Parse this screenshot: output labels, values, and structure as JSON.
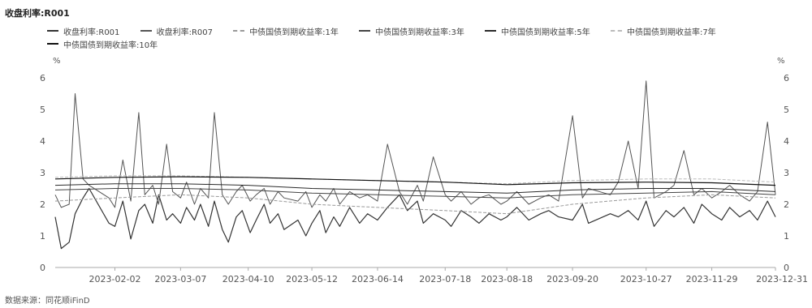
{
  "chart_data": {
    "type": "line",
    "title": "收盘利率:R001",
    "left_unit": "%",
    "right_unit": "%",
    "ylim": [
      0,
      6
    ],
    "y_ticks": [
      0,
      1,
      2,
      3,
      4,
      5,
      6
    ],
    "x_ticks": [
      "2023-02-02",
      "2023-03-07",
      "2023-04-10",
      "2023-05-12",
      "2023-06-14",
      "2023-07-18",
      "2023-08-18",
      "2023-09-20",
      "2023-10-27",
      "2023-11-29",
      "2023-12-31"
    ],
    "x_range": [
      "2023-01-03",
      "2023-12-31"
    ],
    "legend_placement": "top",
    "grid": false,
    "source": "数据来源：同花顺iFinD",
    "series": [
      {
        "name": "收盘利率:R001",
        "color": "#333333",
        "width": 1.2,
        "dates": [
          "2023-01-03",
          "2023-01-06",
          "2023-01-10",
          "2023-01-13",
          "2023-01-17",
          "2023-01-20",
          "2023-01-30",
          "2023-02-02",
          "2023-02-06",
          "2023-02-10",
          "2023-02-14",
          "2023-02-17",
          "2023-02-21",
          "2023-02-24",
          "2023-02-28",
          "2023-03-03",
          "2023-03-07",
          "2023-03-10",
          "2023-03-14",
          "2023-03-17",
          "2023-03-21",
          "2023-03-24",
          "2023-03-28",
          "2023-03-31",
          "2023-04-04",
          "2023-04-07",
          "2023-04-11",
          "2023-04-14",
          "2023-04-18",
          "2023-04-21",
          "2023-04-25",
          "2023-04-28",
          "2023-05-05",
          "2023-05-09",
          "2023-05-12",
          "2023-05-16",
          "2023-05-19",
          "2023-05-23",
          "2023-05-26",
          "2023-05-31",
          "2023-06-05",
          "2023-06-09",
          "2023-06-14",
          "2023-06-19",
          "2023-06-25",
          "2023-06-29",
          "2023-07-04",
          "2023-07-07",
          "2023-07-12",
          "2023-07-18",
          "2023-07-21",
          "2023-07-26",
          "2023-07-31",
          "2023-08-04",
          "2023-08-09",
          "2023-08-15",
          "2023-08-18",
          "2023-08-23",
          "2023-08-29",
          "2023-09-04",
          "2023-09-08",
          "2023-09-13",
          "2023-09-20",
          "2023-09-25",
          "2023-09-28",
          "2023-10-09",
          "2023-10-13",
          "2023-10-18",
          "2023-10-23",
          "2023-10-27",
          "2023-10-31",
          "2023-11-06",
          "2023-11-10",
          "2023-11-15",
          "2023-11-20",
          "2023-11-24",
          "2023-11-29",
          "2023-12-04",
          "2023-12-08",
          "2023-12-13",
          "2023-12-18",
          "2023-12-22",
          "2023-12-27",
          "2023-12-31"
        ],
        "values": [
          1.6,
          0.6,
          0.8,
          1.7,
          2.2,
          2.5,
          1.4,
          1.3,
          2.1,
          0.9,
          1.8,
          2.0,
          1.4,
          2.3,
          1.5,
          1.7,
          1.4,
          1.9,
          1.5,
          2.0,
          1.3,
          2.1,
          1.2,
          0.8,
          1.6,
          1.8,
          1.1,
          1.5,
          2.0,
          1.4,
          1.7,
          1.2,
          1.5,
          1.0,
          1.4,
          1.8,
          1.1,
          1.6,
          1.3,
          1.9,
          1.4,
          1.7,
          1.5,
          1.9,
          2.3,
          1.8,
          2.1,
          1.4,
          1.7,
          1.5,
          1.3,
          1.8,
          1.6,
          1.4,
          1.7,
          1.5,
          1.6,
          1.9,
          1.5,
          1.7,
          1.8,
          1.6,
          1.5,
          2.0,
          1.4,
          1.7,
          1.6,
          1.8,
          1.5,
          2.1,
          1.3,
          1.8,
          1.6,
          1.9,
          1.4,
          2.0,
          1.7,
          1.5,
          1.9,
          1.6,
          1.8,
          1.5,
          2.1,
          1.6
        ]
      },
      {
        "name": "收盘利率:R007",
        "color": "#555555",
        "width": 1.0,
        "dates": [
          "2023-01-03",
          "2023-01-06",
          "2023-01-10",
          "2023-01-13",
          "2023-01-17",
          "2023-01-20",
          "2023-01-30",
          "2023-02-02",
          "2023-02-06",
          "2023-02-10",
          "2023-02-14",
          "2023-02-17",
          "2023-02-21",
          "2023-02-24",
          "2023-02-28",
          "2023-03-03",
          "2023-03-07",
          "2023-03-10",
          "2023-03-14",
          "2023-03-17",
          "2023-03-21",
          "2023-03-24",
          "2023-03-28",
          "2023-03-31",
          "2023-04-04",
          "2023-04-07",
          "2023-04-11",
          "2023-04-14",
          "2023-04-18",
          "2023-04-21",
          "2023-04-25",
          "2023-04-28",
          "2023-05-05",
          "2023-05-09",
          "2023-05-12",
          "2023-05-16",
          "2023-05-19",
          "2023-05-23",
          "2023-05-26",
          "2023-05-31",
          "2023-06-05",
          "2023-06-09",
          "2023-06-14",
          "2023-06-19",
          "2023-06-25",
          "2023-06-29",
          "2023-07-04",
          "2023-07-07",
          "2023-07-12",
          "2023-07-18",
          "2023-07-21",
          "2023-07-26",
          "2023-07-31",
          "2023-08-04",
          "2023-08-09",
          "2023-08-15",
          "2023-08-18",
          "2023-08-23",
          "2023-08-29",
          "2023-09-04",
          "2023-09-08",
          "2023-09-13",
          "2023-09-20",
          "2023-09-25",
          "2023-09-28",
          "2023-10-09",
          "2023-10-13",
          "2023-10-18",
          "2023-10-23",
          "2023-10-27",
          "2023-10-31",
          "2023-11-06",
          "2023-11-10",
          "2023-11-15",
          "2023-11-20",
          "2023-11-24",
          "2023-11-29",
          "2023-12-04",
          "2023-12-08",
          "2023-12-13",
          "2023-12-18",
          "2023-12-22",
          "2023-12-27",
          "2023-12-31"
        ],
        "values": [
          2.3,
          1.9,
          2.0,
          5.5,
          2.8,
          2.6,
          2.2,
          1.9,
          3.4,
          2.1,
          4.9,
          2.3,
          2.6,
          2.0,
          3.9,
          2.4,
          2.2,
          2.7,
          2.0,
          2.5,
          2.2,
          4.9,
          2.3,
          2.0,
          2.4,
          2.6,
          2.1,
          2.3,
          2.5,
          2.0,
          2.4,
          2.2,
          2.1,
          2.4,
          1.9,
          2.3,
          2.1,
          2.5,
          2.0,
          2.4,
          2.2,
          2.3,
          2.1,
          3.9,
          2.4,
          2.0,
          2.6,
          2.1,
          3.5,
          2.3,
          2.1,
          2.4,
          2.0,
          2.2,
          2.3,
          2.0,
          2.1,
          2.4,
          2.0,
          2.2,
          2.3,
          2.1,
          4.8,
          2.2,
          2.5,
          2.3,
          2.7,
          4.0,
          2.5,
          5.9,
          2.2,
          2.4,
          2.6,
          3.7,
          2.3,
          2.5,
          2.2,
          2.4,
          2.6,
          2.3,
          2.1,
          2.4,
          4.6,
          2.3
        ]
      },
      {
        "name": "中债国债到期收益率:1年",
        "color": "#999999",
        "width": 1.0,
        "dates": [
          "2023-01-03",
          "2023-02-02",
          "2023-03-07",
          "2023-04-10",
          "2023-05-12",
          "2023-06-14",
          "2023-07-18",
          "2023-08-18",
          "2023-09-20",
          "2023-10-27",
          "2023-11-29",
          "2023-12-31"
        ],
        "values": [
          2.1,
          2.2,
          2.3,
          2.2,
          2.0,
          1.9,
          1.8,
          1.7,
          2.0,
          2.2,
          2.3,
          2.2
        ]
      },
      {
        "name": "中债国债到期收益率:3年",
        "color": "#444444",
        "width": 1.0,
        "dates": [
          "2023-01-03",
          "2023-02-02",
          "2023-03-07",
          "2023-04-10",
          "2023-05-12",
          "2023-06-14",
          "2023-07-18",
          "2023-08-18",
          "2023-09-20",
          "2023-10-27",
          "2023-11-29",
          "2023-12-31"
        ],
        "values": [
          2.45,
          2.5,
          2.5,
          2.45,
          2.35,
          2.3,
          2.25,
          2.2,
          2.3,
          2.35,
          2.4,
          2.3
        ]
      },
      {
        "name": "中债国债到期收益率:5年",
        "color": "#2a2a2a",
        "width": 1.0,
        "dates": [
          "2023-01-03",
          "2023-02-02",
          "2023-03-07",
          "2023-04-10",
          "2023-05-12",
          "2023-06-14",
          "2023-07-18",
          "2023-08-18",
          "2023-09-20",
          "2023-10-27",
          "2023-11-29",
          "2023-12-31"
        ],
        "values": [
          2.6,
          2.65,
          2.65,
          2.6,
          2.5,
          2.45,
          2.4,
          2.35,
          2.45,
          2.5,
          2.5,
          2.4
        ]
      },
      {
        "name": "中债国债到期收益率:7年",
        "color": "#bbbbbb",
        "width": 1.0,
        "dates": [
          "2023-01-03",
          "2023-02-02",
          "2023-03-07",
          "2023-04-10",
          "2023-05-12",
          "2023-06-14",
          "2023-07-18",
          "2023-08-18",
          "2023-09-20",
          "2023-10-27",
          "2023-11-29",
          "2023-12-31"
        ],
        "values": [
          2.85,
          2.9,
          2.9,
          2.85,
          2.8,
          2.75,
          2.7,
          2.65,
          2.75,
          2.8,
          2.8,
          2.7
        ]
      },
      {
        "name": "中债国债到期收益率:10年",
        "color": "#111111",
        "width": 1.2,
        "dates": [
          "2023-01-03",
          "2023-02-02",
          "2023-03-07",
          "2023-04-10",
          "2023-05-12",
          "2023-06-14",
          "2023-07-18",
          "2023-08-18",
          "2023-09-20",
          "2023-10-27",
          "2023-11-29",
          "2023-12-31"
        ],
        "values": [
          2.8,
          2.85,
          2.87,
          2.85,
          2.8,
          2.75,
          2.7,
          2.62,
          2.68,
          2.7,
          2.68,
          2.6
        ]
      }
    ]
  }
}
